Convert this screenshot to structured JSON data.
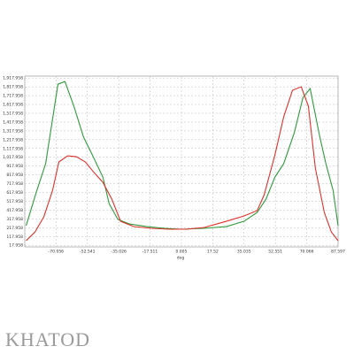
{
  "brand": "KHATOD",
  "chart_data": {
    "type": "line",
    "xlabel": "deg",
    "xlim": [
      -87.557,
      87.597
    ],
    "ylim": [
      0,
      1940
    ],
    "xticks": [
      -70.056,
      -52.541,
      -35.026,
      -17.511,
      0.005,
      17.52,
      35.035,
      52.551,
      70.066,
      87.597
    ],
    "yticks": [
      17.958,
      117.958,
      217.958,
      317.958,
      417.958,
      517.958,
      617.958,
      717.958,
      817.958,
      917.958,
      {
        "value": 1017.958,
        "label": "1,017.958"
      },
      {
        "value": 1117.958,
        "label": "1,117.958"
      },
      {
        "value": 1217.958,
        "label": "1,217.958"
      },
      {
        "value": 1317.958,
        "label": "1,317.958"
      },
      {
        "value": 1417.958,
        "label": "1,417.958"
      },
      {
        "value": 1517.958,
        "label": "1,517.958"
      },
      {
        "value": 1617.958,
        "label": "1,617.958"
      },
      {
        "value": 1717.958,
        "label": "1,717.958"
      },
      {
        "value": 1817.958,
        "label": "1,817.958"
      },
      {
        "value": 1917.958,
        "label": "1,917.958"
      }
    ],
    "grid": true,
    "series": [
      {
        "color": "#2e9a3c",
        "x": [
          -86.8,
          -80.8,
          -75.9,
          -69.0,
          -65.1,
          -60.1,
          -54.7,
          -49.8,
          -43.9,
          -40.4,
          -35.5,
          -29.1,
          -19.2,
          -9.4,
          0,
          12.8,
          25.1,
          35.0,
          42.4,
          47.3,
          52.3,
          57.2,
          63.1,
          68.0,
          72.0,
          76.9,
          80.8,
          84.8,
          87.6
        ],
        "values": [
          241,
          643,
          945,
          1849,
          1879,
          1598,
          1246,
          1045,
          794,
          492,
          312,
          261,
          231,
          211,
          201,
          211,
          231,
          291,
          392,
          543,
          794,
          945,
          1296,
          1698,
          1799,
          1296,
          945,
          643,
          241
        ]
      },
      {
        "color": "#e0302a",
        "x": [
          -86.8,
          -81.8,
          -76.9,
          -72.0,
          -68.5,
          -63.6,
          -58.7,
          -53.7,
          -48.8,
          -43.9,
          -38.9,
          -34.0,
          -26.6,
          -16.8,
          -6.9,
          3.0,
          12.8,
          25.1,
          35.0,
          42.4,
          46.3,
          52.3,
          57.2,
          62.1,
          67.0,
          71.0,
          74.9,
          79.9,
          83.8,
          87.6
        ],
        "values": [
          70,
          171,
          342,
          643,
          965,
          1035,
          1025,
          965,
          844,
          734,
          543,
          291,
          231,
          211,
          201,
          201,
          221,
          291,
          352,
          412,
          593,
          1045,
          1477,
          1779,
          1819,
          1598,
          894,
          392,
          171,
          70
        ]
      }
    ]
  }
}
